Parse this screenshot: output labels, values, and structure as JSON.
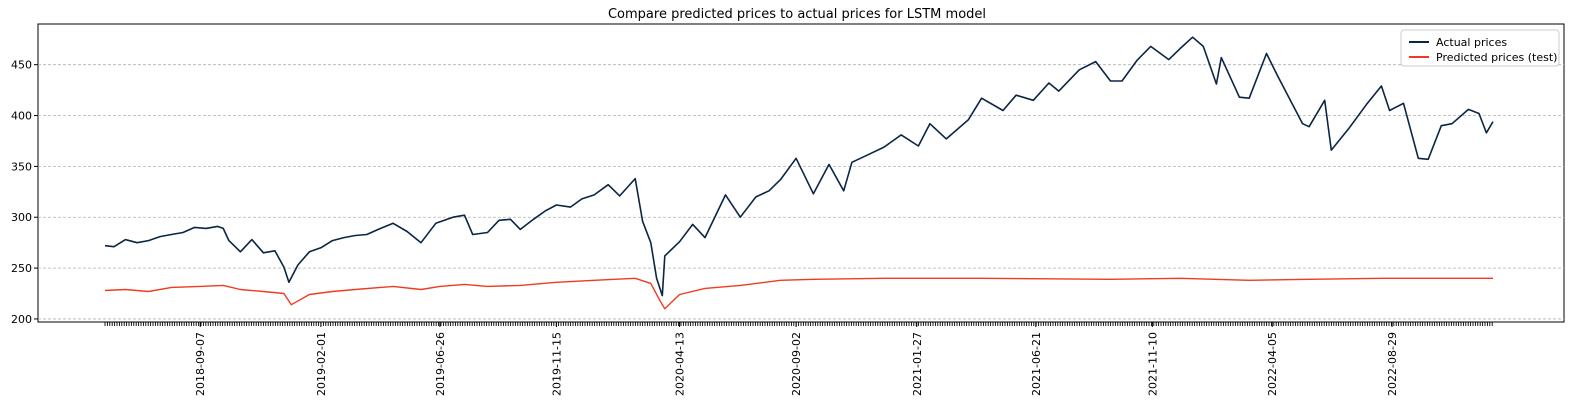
{
  "chart_data": {
    "type": "line",
    "title": "Compare predicted prices to actual prices for LSTM model",
    "xlabel": "",
    "ylabel": "",
    "x_range": [
      "2018-05-14",
      "2022-12-30"
    ],
    "ylim": [
      197,
      490
    ],
    "y_ticks": [
      200,
      250,
      300,
      350,
      400,
      450
    ],
    "x_ticks": [
      "2018-09-07",
      "2019-02-01",
      "2019-06-26",
      "2019-11-15",
      "2020-04-13",
      "2020-09-02",
      "2021-01-27",
      "2021-06-21",
      "2021-11-10",
      "2022-04-05",
      "2022-08-29"
    ],
    "grid": "y-dashed",
    "legend_position": "top-right",
    "series": [
      {
        "name": "Actual prices",
        "color": "#0b2545",
        "points": [
          [
            "2018-05-14",
            272
          ],
          [
            "2018-05-25",
            271
          ],
          [
            "2018-06-08",
            278
          ],
          [
            "2018-06-22",
            275
          ],
          [
            "2018-07-06",
            277
          ],
          [
            "2018-07-20",
            281
          ],
          [
            "2018-08-03",
            283
          ],
          [
            "2018-08-17",
            285
          ],
          [
            "2018-08-31",
            290
          ],
          [
            "2018-09-14",
            289
          ],
          [
            "2018-09-28",
            291
          ],
          [
            "2018-10-05",
            289
          ],
          [
            "2018-10-12",
            277
          ],
          [
            "2018-10-26",
            266
          ],
          [
            "2018-11-09",
            278
          ],
          [
            "2018-11-23",
            265
          ],
          [
            "2018-12-07",
            267
          ],
          [
            "2018-12-18",
            251
          ],
          [
            "2018-12-24",
            236
          ],
          [
            "2019-01-04",
            253
          ],
          [
            "2019-01-18",
            266
          ],
          [
            "2019-02-01",
            270
          ],
          [
            "2019-02-15",
            277
          ],
          [
            "2019-03-01",
            280
          ],
          [
            "2019-03-15",
            282
          ],
          [
            "2019-03-29",
            283
          ],
          [
            "2019-04-12",
            288
          ],
          [
            "2019-04-30",
            294
          ],
          [
            "2019-05-17",
            286
          ],
          [
            "2019-06-03",
            275
          ],
          [
            "2019-06-21",
            294
          ],
          [
            "2019-07-12",
            300
          ],
          [
            "2019-07-26",
            302
          ],
          [
            "2019-08-05",
            283
          ],
          [
            "2019-08-23",
            285
          ],
          [
            "2019-09-06",
            297
          ],
          [
            "2019-09-20",
            298
          ],
          [
            "2019-10-02",
            288
          ],
          [
            "2019-10-18",
            298
          ],
          [
            "2019-11-01",
            306
          ],
          [
            "2019-11-15",
            312
          ],
          [
            "2019-12-02",
            310
          ],
          [
            "2019-12-16",
            318
          ],
          [
            "2019-12-31",
            322
          ],
          [
            "2020-01-17",
            332
          ],
          [
            "2020-01-31",
            321
          ],
          [
            "2020-02-19",
            338
          ],
          [
            "2020-02-28",
            296
          ],
          [
            "2020-03-09",
            275
          ],
          [
            "2020-03-16",
            240
          ],
          [
            "2020-03-23",
            223
          ],
          [
            "2020-03-26",
            262
          ],
          [
            "2020-04-13",
            276
          ],
          [
            "2020-04-29",
            293
          ],
          [
            "2020-05-14",
            280
          ],
          [
            "2020-06-08",
            322
          ],
          [
            "2020-06-26",
            300
          ],
          [
            "2020-07-15",
            320
          ],
          [
            "2020-07-31",
            326
          ],
          [
            "2020-08-14",
            337
          ],
          [
            "2020-09-02",
            358
          ],
          [
            "2020-09-23",
            323
          ],
          [
            "2020-10-12",
            352
          ],
          [
            "2020-10-30",
            326
          ],
          [
            "2020-11-09",
            354
          ],
          [
            "2020-11-30",
            362
          ],
          [
            "2020-12-18",
            369
          ],
          [
            "2021-01-08",
            381
          ],
          [
            "2021-01-29",
            370
          ],
          [
            "2021-02-12",
            392
          ],
          [
            "2021-03-04",
            377
          ],
          [
            "2021-03-31",
            396
          ],
          [
            "2021-04-16",
            417
          ],
          [
            "2021-05-12",
            405
          ],
          [
            "2021-05-28",
            420
          ],
          [
            "2021-06-18",
            415
          ],
          [
            "2021-07-07",
            432
          ],
          [
            "2021-07-19",
            424
          ],
          [
            "2021-08-13",
            445
          ],
          [
            "2021-09-02",
            453
          ],
          [
            "2021-09-20",
            434
          ],
          [
            "2021-10-04",
            434
          ],
          [
            "2021-10-22",
            454
          ],
          [
            "2021-11-08",
            468
          ],
          [
            "2021-11-30",
            455
          ],
          [
            "2021-12-14",
            466
          ],
          [
            "2021-12-29",
            477
          ],
          [
            "2022-01-11",
            468
          ],
          [
            "2022-01-27",
            431
          ],
          [
            "2022-02-02",
            457
          ],
          [
            "2022-02-24",
            418
          ],
          [
            "2022-03-08",
            417
          ],
          [
            "2022-03-29",
            461
          ],
          [
            "2022-04-11",
            440
          ],
          [
            "2022-04-29",
            412
          ],
          [
            "2022-05-12",
            392
          ],
          [
            "2022-05-20",
            389
          ],
          [
            "2022-06-08",
            415
          ],
          [
            "2022-06-16",
            366
          ],
          [
            "2022-07-08",
            388
          ],
          [
            "2022-07-29",
            411
          ],
          [
            "2022-08-16",
            429
          ],
          [
            "2022-08-26",
            405
          ],
          [
            "2022-09-12",
            412
          ],
          [
            "2022-09-30",
            358
          ],
          [
            "2022-10-12",
            357
          ],
          [
            "2022-10-28",
            390
          ],
          [
            "2022-11-10",
            392
          ],
          [
            "2022-11-30",
            406
          ],
          [
            "2022-12-13",
            402
          ],
          [
            "2022-12-22",
            383
          ],
          [
            "2022-12-30",
            394
          ]
        ]
      },
      {
        "name": "Predicted prices (test)",
        "color": "#f03b20",
        "points": [
          [
            "2018-05-14",
            228
          ],
          [
            "2018-06-08",
            229
          ],
          [
            "2018-07-06",
            227
          ],
          [
            "2018-08-03",
            231
          ],
          [
            "2018-09-07",
            232
          ],
          [
            "2018-10-05",
            233
          ],
          [
            "2018-10-26",
            229
          ],
          [
            "2018-11-23",
            227
          ],
          [
            "2018-12-18",
            225
          ],
          [
            "2018-12-27",
            214
          ],
          [
            "2019-01-18",
            224
          ],
          [
            "2019-02-15",
            227
          ],
          [
            "2019-03-15",
            229
          ],
          [
            "2019-04-30",
            232
          ],
          [
            "2019-06-03",
            229
          ],
          [
            "2019-06-26",
            232
          ],
          [
            "2019-07-26",
            234
          ],
          [
            "2019-08-23",
            232
          ],
          [
            "2019-10-02",
            233
          ],
          [
            "2019-11-15",
            236
          ],
          [
            "2019-12-31",
            238
          ],
          [
            "2020-02-19",
            240
          ],
          [
            "2020-03-09",
            235
          ],
          [
            "2020-03-20",
            218
          ],
          [
            "2020-03-26",
            210
          ],
          [
            "2020-04-13",
            224
          ],
          [
            "2020-05-14",
            230
          ],
          [
            "2020-06-26",
            233
          ],
          [
            "2020-08-14",
            238
          ],
          [
            "2020-09-23",
            239
          ],
          [
            "2020-12-18",
            240
          ],
          [
            "2021-04-16",
            240
          ],
          [
            "2021-09-20",
            239
          ],
          [
            "2021-12-14",
            240
          ],
          [
            "2022-03-08",
            238
          ],
          [
            "2022-05-20",
            239
          ],
          [
            "2022-08-16",
            240
          ],
          [
            "2022-12-30",
            240
          ]
        ]
      }
    ]
  }
}
